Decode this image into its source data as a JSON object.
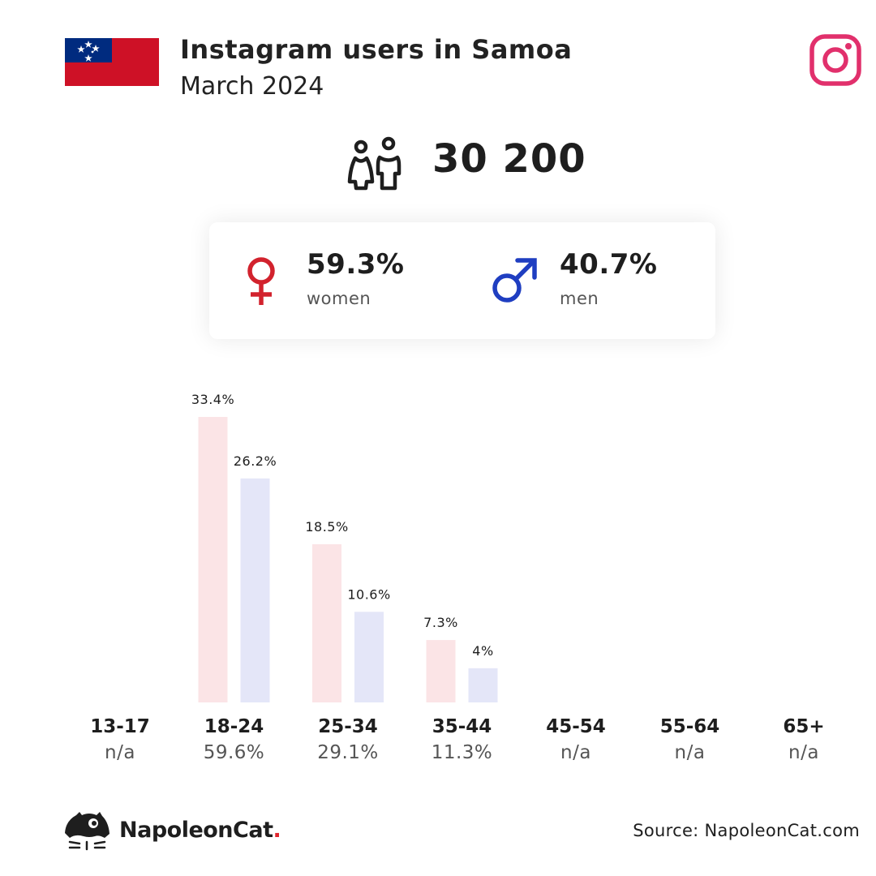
{
  "header": {
    "title": "Instagram users in Samoa",
    "subtitle": "March 2024",
    "flag_icon": "samoa-flag-icon",
    "platform_icon": "instagram-icon"
  },
  "total": {
    "value": "30 200",
    "icon": "people-icon"
  },
  "gender": {
    "women": {
      "pct": "59.3%",
      "label": "women",
      "icon": "female-symbol-icon",
      "color": "#d2222d"
    },
    "men": {
      "pct": "40.7%",
      "label": "men",
      "icon": "male-symbol-icon",
      "color": "#1f3ec1"
    }
  },
  "chart_data": {
    "type": "bar",
    "categories": [
      "13-17",
      "18-24",
      "25-34",
      "35-44",
      "45-54",
      "55-64",
      "65+"
    ],
    "category_totals": [
      "n/a",
      "59.6%",
      "29.1%",
      "11.3%",
      "n/a",
      "n/a",
      "n/a"
    ],
    "series": [
      {
        "color": "#fbe4e6",
        "values": [
          null,
          33.4,
          18.5,
          7.3,
          null,
          null,
          null
        ],
        "labels": [
          "",
          "33.4%",
          "18.5%",
          "7.3%",
          "",
          "",
          ""
        ]
      },
      {
        "color": "#e4e6f8",
        "values": [
          null,
          26.2,
          10.6,
          4,
          null,
          null,
          null
        ],
        "labels": [
          "",
          "26.2%",
          "10.6%",
          "4%",
          "",
          "",
          ""
        ]
      }
    ],
    "ylim": [
      0,
      33.4
    ]
  },
  "footer": {
    "brand_name": "NapoleonCat",
    "brand_dot": ".",
    "brand_icon": "napoleoncat-logo-icon",
    "source": "Source: NapoleonCat.com"
  }
}
